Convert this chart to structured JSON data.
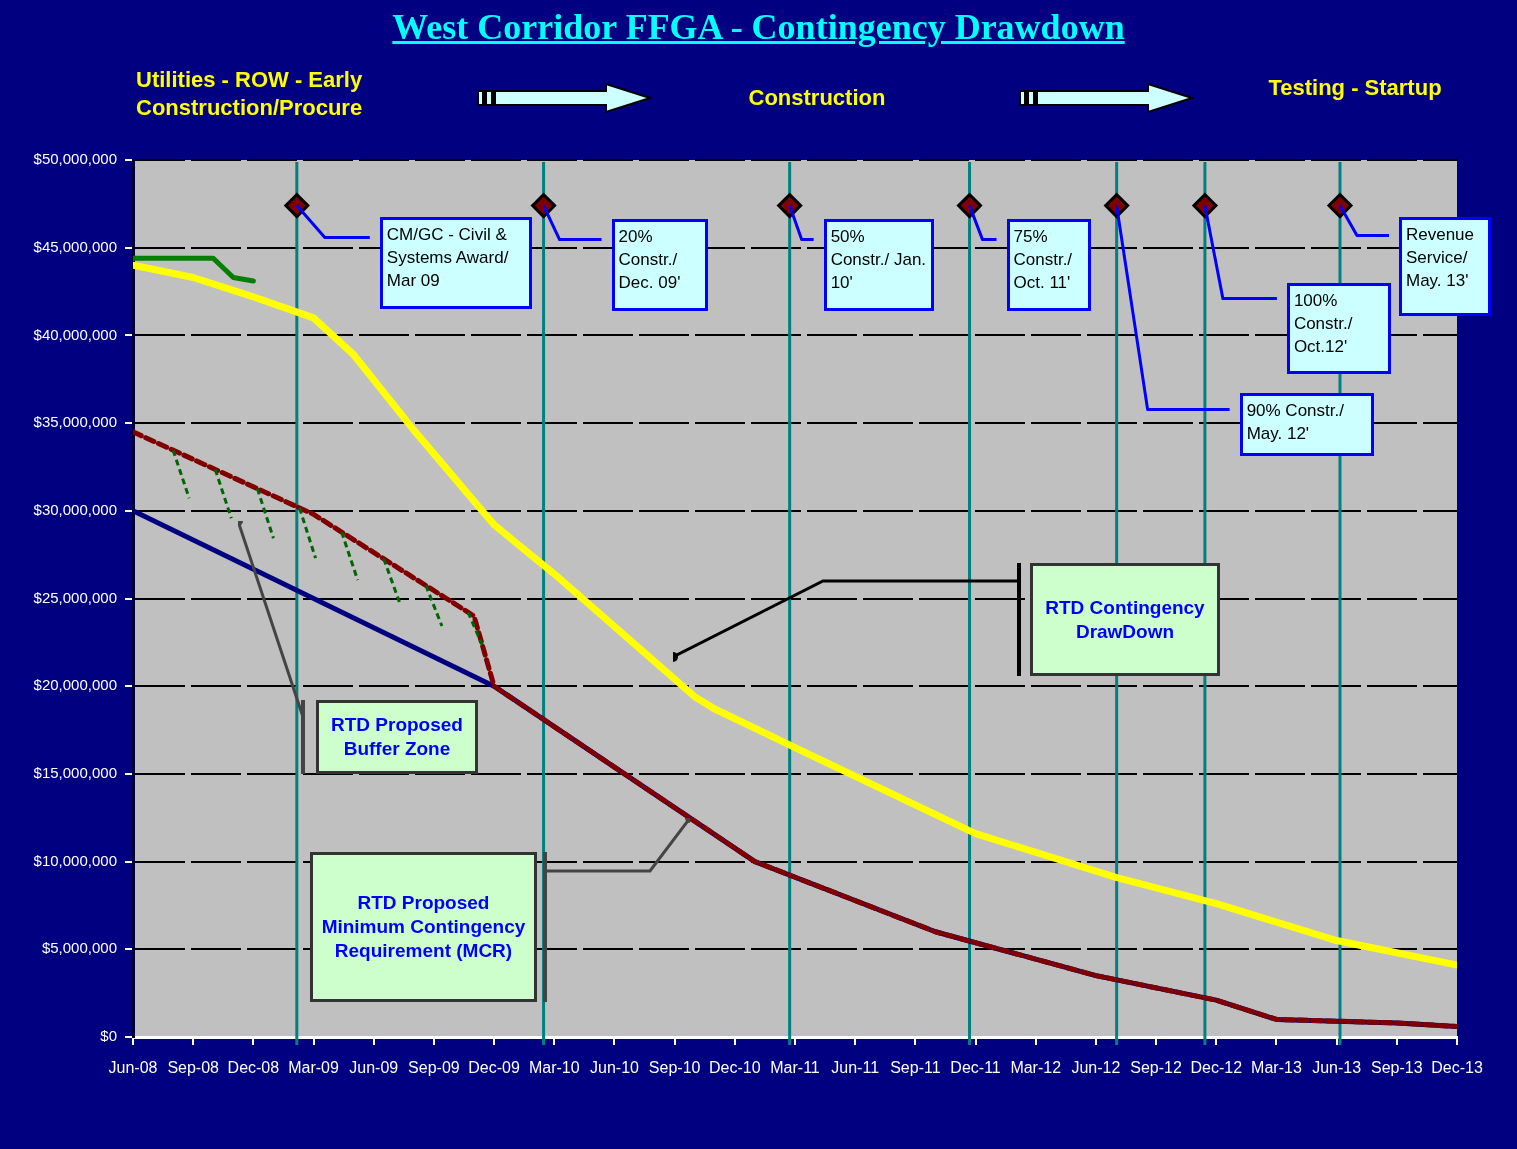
{
  "chart_data": {
    "type": "line",
    "title": "West Corridor FFGA - Contingency Drawdown",
    "xlim": [
      "2008-06",
      "2013-12"
    ],
    "xticks": [
      {
        "value": "2008-06",
        "label": "Jun-08"
      },
      {
        "value": "2008-09",
        "label": "Sep-08"
      },
      {
        "value": "2008-12",
        "label": "Dec-08"
      },
      {
        "value": "2009-03",
        "label": "Mar-09"
      },
      {
        "value": "2009-06",
        "label": "Jun-09"
      },
      {
        "value": "2009-09",
        "label": "Sep-09"
      },
      {
        "value": "2009-12",
        "label": "Dec-09"
      },
      {
        "value": "2010-03",
        "label": "Mar-10"
      },
      {
        "value": "2010-06",
        "label": "Jun-10"
      },
      {
        "value": "2010-09",
        "label": "Sep-10"
      },
      {
        "value": "2010-12",
        "label": "Dec-10"
      },
      {
        "value": "2011-03",
        "label": "Mar-11"
      },
      {
        "value": "2011-06",
        "label": "Jun-11"
      },
      {
        "value": "2011-09",
        "label": "Sep-11"
      },
      {
        "value": "2011-12",
        "label": "Dec-11"
      },
      {
        "value": "2012-03",
        "label": "Mar-12"
      },
      {
        "value": "2012-06",
        "label": "Jun-12"
      },
      {
        "value": "2012-09",
        "label": "Sep-12"
      },
      {
        "value": "2012-12",
        "label": "Dec-12"
      },
      {
        "value": "2013-03",
        "label": "Mar-13"
      },
      {
        "value": "2013-06",
        "label": "Jun-13"
      },
      {
        "value": "2013-09",
        "label": "Sep-13"
      },
      {
        "value": "2013-12",
        "label": "Dec-13"
      }
    ],
    "ylim": [
      0,
      50000000
    ],
    "yticks": [
      {
        "value": 0,
        "label": "$0"
      },
      {
        "value": 5000000,
        "label": "$5,000,000"
      },
      {
        "value": 10000000,
        "label": "$10,000,000"
      },
      {
        "value": 15000000,
        "label": "$15,000,000"
      },
      {
        "value": 20000000,
        "label": "$20,000,000"
      },
      {
        "value": 25000000,
        "label": "$25,000,000"
      },
      {
        "value": 30000000,
        "label": "$30,000,000"
      },
      {
        "value": 35000000,
        "label": "$35,000,000"
      },
      {
        "value": 40000000,
        "label": "$40,000,000"
      },
      {
        "value": 45000000,
        "label": "$45,000,000"
      },
      {
        "value": 50000000,
        "label": "$50,000,000"
      }
    ],
    "grid": "y",
    "legend": false,
    "marker": "none",
    "series": [
      {
        "color": "#ffff00",
        "x": [
          "2008-06",
          "2008-09",
          "2008-12",
          "2009-03",
          "2009-05",
          "2009-08",
          "2009-12",
          "2010-03",
          "2010-10",
          "2010-11",
          "2011-03",
          "2011-12",
          "2012-07",
          "2012-12",
          "2013-06",
          "2013-12"
        ],
        "values": [
          44000000,
          43300000,
          42200000,
          41000000,
          38900000,
          34600000,
          29200000,
          26400000,
          19400000,
          18700000,
          16500000,
          11600000,
          9100000,
          7600000,
          5500000,
          4100000
        ]
      },
      {
        "color": "#008000",
        "x": [
          "2008-06",
          "2008-10",
          "2008-11",
          "2008-12"
        ],
        "values": [
          44400000,
          44400000,
          43300000,
          43100000
        ]
      },
      {
        "color": "#000080",
        "x": [
          "2008-06",
          "2009-12",
          "2011-01",
          "2011-10",
          "2012-06",
          "2012-12",
          "2013-03",
          "2013-09",
          "2013-12"
        ],
        "values": [
          30000000,
          20000000,
          10000000,
          6000000,
          3500000,
          2100000,
          1000000,
          800000,
          600000
        ]
      },
      {
        "color": "#800000",
        "line_style": "dashed",
        "x": [
          "2008-06",
          "2009-03",
          "2009-11",
          "2009-12",
          "2011-01",
          "2011-10",
          "2012-06",
          "2012-12",
          "2013-03",
          "2013-09",
          "2013-12"
        ],
        "values": [
          34500000,
          29800000,
          24000000,
          20000000,
          10000000,
          6000000,
          3500000,
          2100000,
          1000000,
          800000,
          600000
        ]
      },
      {
        "type": "scatter",
        "marker": "diamond",
        "color": "#800000",
        "x": [
          "2009-02-06",
          "2010-02-15",
          "2011-02-23",
          "2011-11-22",
          "2012-07-02",
          "2012-11-14",
          "2013-06-06"
        ],
        "values": [
          47400000,
          47400000,
          47400000,
          47400000,
          47400000,
          47400000,
          47400000
        ]
      }
    ],
    "ref_lines": [
      {
        "axis": "x",
        "value": "2009-02-06",
        "color": "#008080"
      },
      {
        "axis": "x",
        "value": "2010-02-15",
        "color": "#008080"
      },
      {
        "axis": "x",
        "value": "2011-02-23",
        "color": "#008080"
      },
      {
        "axis": "x",
        "value": "2011-11-22",
        "color": "#008080"
      },
      {
        "axis": "x",
        "value": "2012-07-02",
        "color": "#008080"
      },
      {
        "axis": "x",
        "value": "2012-11-14",
        "color": "#008080"
      },
      {
        "axis": "x",
        "value": "2013-06-06",
        "color": "#008080"
      }
    ],
    "annotations": [
      "Utilities - ROW - Early Construction/Procure",
      "Construction",
      "Testing - Startup",
      {
        "text": "CM/GC - Civil & Systems Award/ Mar 09",
        "x": "2009-02-06",
        "y": 47400000
      },
      {
        "text": "20% Constr./ Dec. 09'",
        "x": "2010-02-15",
        "y": 47400000
      },
      {
        "text": "50% Constr./ Jan. 10'",
        "x": "2011-02-23",
        "y": 47400000
      },
      {
        "text": "75% Constr./ Oct. 11'",
        "x": "2011-11-22",
        "y": 47400000
      },
      {
        "text": "90% Constr./ May. 12'",
        "x": "2012-07-02",
        "y": 47400000
      },
      {
        "text": "100% Constr./ Oct.12'",
        "x": "2012-11-14",
        "y": 47400000
      },
      {
        "text": "Revenue Service/ May. 13'",
        "x": "2013-06-06",
        "y": 47400000
      },
      "RTD Contingency DrawDown",
      "RTD Proposed Buffer Zone",
      "RTD Proposed Minimum Contingency Requirement (MCR)"
    ]
  }
}
